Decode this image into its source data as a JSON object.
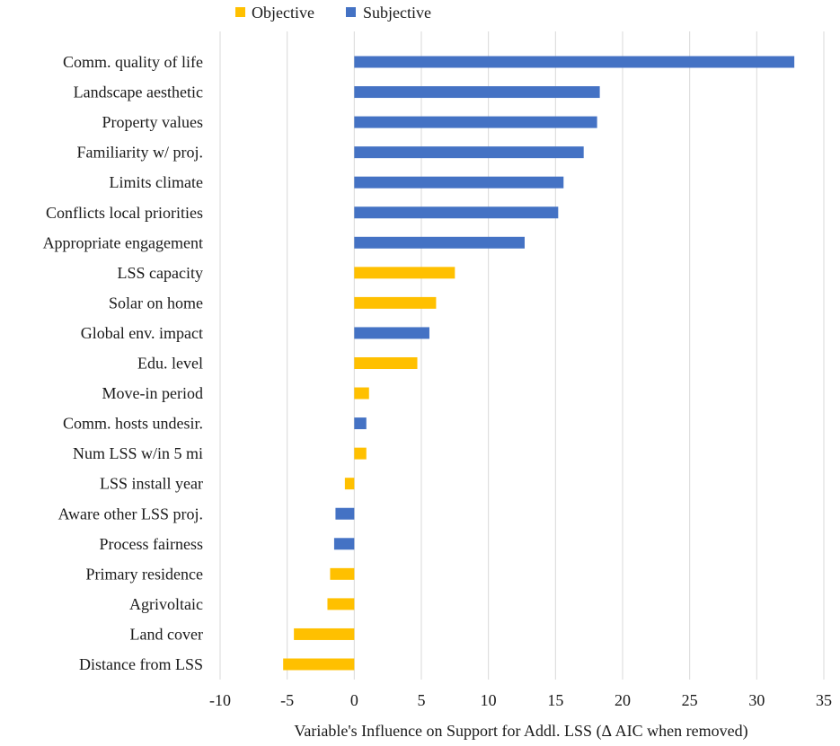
{
  "chart_data": {
    "type": "bar",
    "orientation": "horizontal",
    "title": "",
    "xlabel": "Variable's Influence on Support for Addl. LSS (Δ AIC when removed)",
    "ylabel": "",
    "xlim": [
      -10,
      35
    ],
    "xticks": [
      -10,
      -5,
      0,
      5,
      10,
      15,
      20,
      25,
      30,
      35
    ],
    "xtick_labels": [
      "-10",
      "-5",
      "0",
      "5",
      "10",
      "15",
      "20",
      "25",
      "30",
      "35"
    ],
    "grid": "vertical",
    "legend_position": "top-left",
    "series": [
      {
        "name": "Objective",
        "color": "#FFC000"
      },
      {
        "name": "Subjective",
        "color": "#4472C4"
      }
    ],
    "bars": [
      {
        "category": "Comm. quality of life",
        "value": 32.8,
        "series": "Subjective"
      },
      {
        "category": "Landscape aesthetic",
        "value": 18.3,
        "series": "Subjective"
      },
      {
        "category": "Property values",
        "value": 18.1,
        "series": "Subjective"
      },
      {
        "category": "Familiarity w/ proj.",
        "value": 17.1,
        "series": "Subjective"
      },
      {
        "category": "Limits climate",
        "value": 15.6,
        "series": "Subjective"
      },
      {
        "category": "Conflicts local priorities",
        "value": 15.2,
        "series": "Subjective"
      },
      {
        "category": "Appropriate engagement",
        "value": 12.7,
        "series": "Subjective"
      },
      {
        "category": "LSS capacity",
        "value": 7.5,
        "series": "Objective"
      },
      {
        "category": "Solar on home",
        "value": 6.1,
        "series": "Objective"
      },
      {
        "category": "Global env. impact",
        "value": 5.6,
        "series": "Subjective"
      },
      {
        "category": "Edu. level",
        "value": 4.7,
        "series": "Objective"
      },
      {
        "category": "Move-in period",
        "value": 1.1,
        "series": "Objective"
      },
      {
        "category": "Comm. hosts undesir.",
        "value": 0.9,
        "series": "Subjective"
      },
      {
        "category": "Num LSS w/in 5 mi",
        "value": 0.9,
        "series": "Objective"
      },
      {
        "category": "LSS install year",
        "value": -0.7,
        "series": "Objective"
      },
      {
        "category": "Aware other LSS proj.",
        "value": -1.4,
        "series": "Subjective"
      },
      {
        "category": "Process fairness",
        "value": -1.5,
        "series": "Subjective"
      },
      {
        "category": "Primary residence",
        "value": -1.8,
        "series": "Objective"
      },
      {
        "category": "Agrivoltaic",
        "value": -2.0,
        "series": "Objective"
      },
      {
        "category": "Land cover",
        "value": -4.5,
        "series": "Objective"
      },
      {
        "category": "Distance from LSS",
        "value": -5.3,
        "series": "Objective"
      }
    ]
  }
}
